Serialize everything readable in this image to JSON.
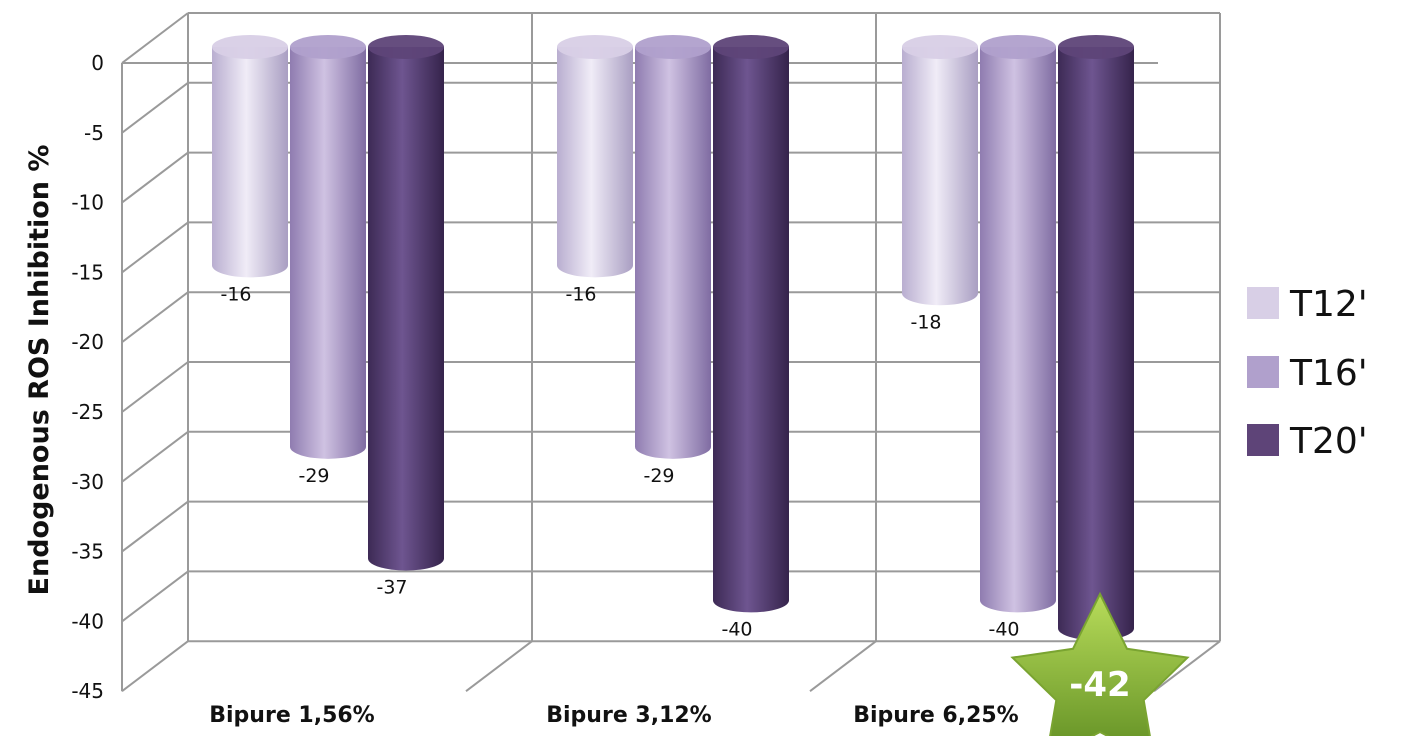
{
  "chart_data": {
    "type": "bar",
    "style": "3d-cylinder",
    "title": "",
    "xlabel": "",
    "ylabel": "Endogenous ROS Inhibition %",
    "ylim": [
      -45,
      0
    ],
    "yticks": [
      "0",
      "-5",
      "-10",
      "-15",
      "-20",
      "-25",
      "-30",
      "-35",
      "-40",
      "-45"
    ],
    "categories": [
      "Bipure 1,56%",
      "Bipure 3,12%",
      "Bipure 6,25%"
    ],
    "series": [
      {
        "name": "T12'",
        "values": [
          -16,
          -16,
          -18
        ],
        "labels": [
          "-16",
          "-16",
          "-18"
        ],
        "color": "#d8cfe6"
      },
      {
        "name": "T16'",
        "values": [
          -29,
          -29,
          -40
        ],
        "labels": [
          "-29",
          "-29",
          "-40"
        ],
        "color": "#b0a0cc"
      },
      {
        "name": "T20'",
        "values": [
          -37,
          -40,
          -42
        ],
        "labels": [
          "-37",
          "-40",
          ""
        ],
        "color": "#5e4478"
      }
    ],
    "grid": true,
    "legend_position": "right",
    "highlight": {
      "label": "-42",
      "shape": "star",
      "color": "#8cb83a"
    }
  }
}
